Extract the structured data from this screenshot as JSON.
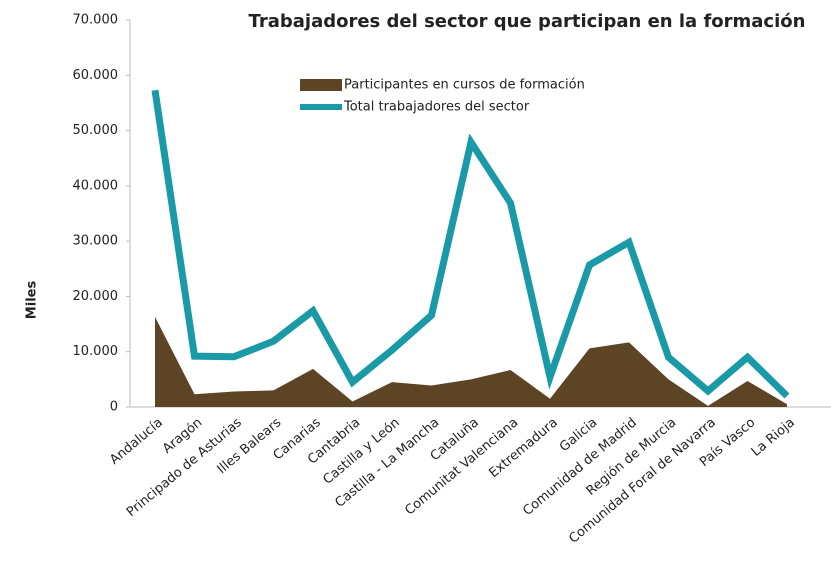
{
  "chart_data": {
    "type": "area-line",
    "title": "Trabajadores del sector que participan en la formación",
    "y_label": "Miles",
    "categories": [
      "Andalucía",
      "Aragón",
      "Principado de Asturias",
      "Illes Balears",
      "Canarias",
      "Cantabria",
      "Castilla y León",
      "Castilla - La Mancha",
      "Cataluña",
      "Comunitat Valenciana",
      "Extremadura",
      "Galicia",
      "Comunidad de Madrid",
      "Región de Murcia",
      "Comunidad Foral de Navarra",
      "País Vasco",
      "La Rioja"
    ],
    "series": [
      {
        "name": "Participantes en cursos de formación",
        "color": "#5c4425",
        "kind": "area",
        "values": [
          16300,
          2300,
          2800,
          3000,
          6900,
          1000,
          4500,
          3900,
          5000,
          6700,
          1500,
          10600,
          11700,
          5000,
          200,
          4700,
          500
        ]
      },
      {
        "name": "Total trabajadores del sector",
        "color": "#1a9aa6",
        "kind": "line",
        "values": [
          57300,
          9200,
          9100,
          11900,
          17400,
          4500,
          10300,
          16600,
          47900,
          36900,
          5400,
          25700,
          29800,
          9000,
          2900,
          9000,
          2000
        ]
      }
    ],
    "ylim": [
      0,
      70000
    ],
    "yticks": [
      0,
      {
        "value": 10000,
        "label": "10.000"
      },
      {
        "value": 20000,
        "label": "20.000"
      },
      {
        "value": 30000,
        "label": "30.000"
      },
      {
        "value": 40000,
        "label": "40.000"
      },
      {
        "value": 50000,
        "label": "50.000"
      },
      {
        "value": 60000,
        "label": "60.000"
      },
      {
        "value": 70000,
        "label": "70.000"
      }
    ]
  }
}
